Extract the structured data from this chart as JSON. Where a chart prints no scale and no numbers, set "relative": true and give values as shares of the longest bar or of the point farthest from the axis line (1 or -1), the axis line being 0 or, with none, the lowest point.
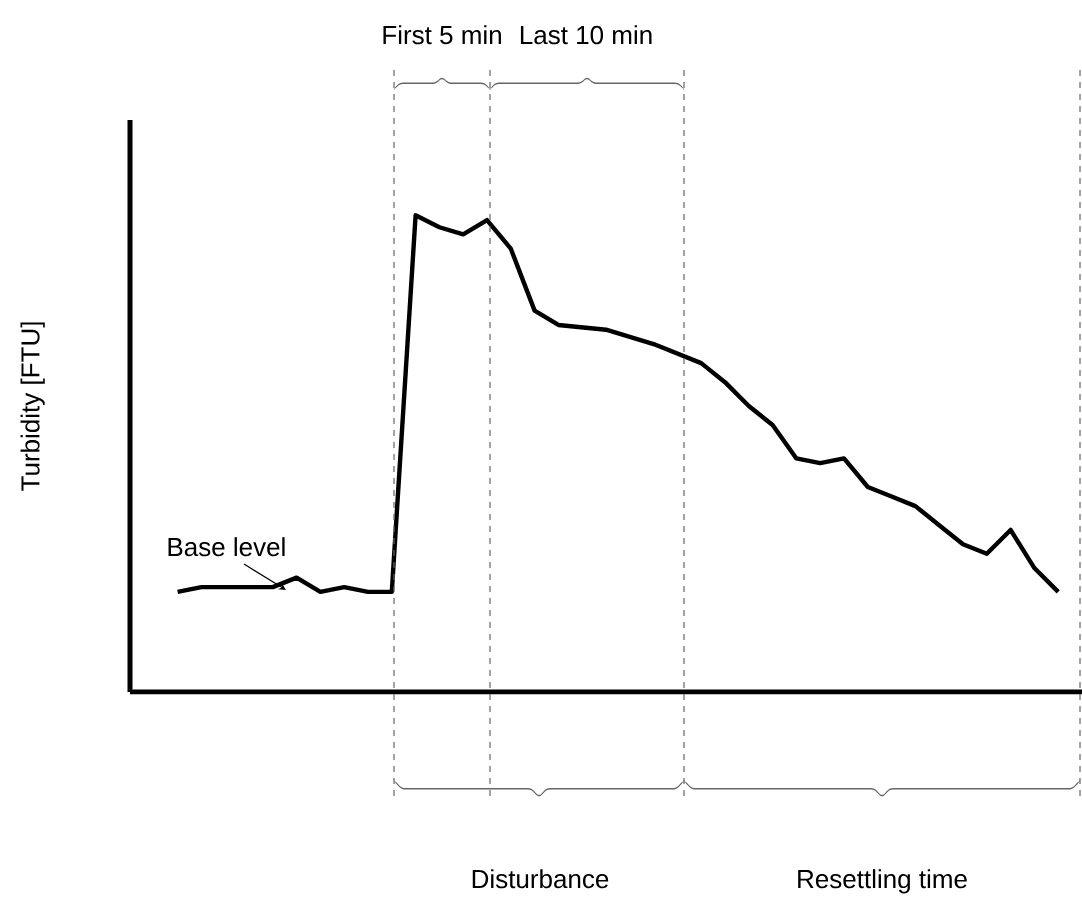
{
  "chart_data": {
    "type": "line",
    "relative": true,
    "ylabel": "Turbidity [FTU]",
    "categories": [
      null,
      null,
      null,
      null,
      null,
      null,
      null,
      null,
      null,
      null,
      null,
      null,
      null,
      null,
      null,
      null,
      null,
      null,
      null,
      null,
      null,
      null,
      null,
      null,
      null,
      null,
      null,
      null,
      null,
      null,
      null,
      null,
      null,
      null,
      null,
      null,
      null,
      null
    ],
    "series": [
      {
        "color": "#000000",
        "values": [
          0.21,
          0.22,
          0.22,
          0.22,
          0.22,
          0.24,
          0.21,
          0.22,
          0.21,
          0.21,
          1,
          0.975,
          0.96,
          0.99,
          0.93,
          0.8,
          0.77,
          0.765,
          0.76,
          0.745,
          0.73,
          0.71,
          0.69,
          0.65,
          0.6,
          0.56,
          0.49,
          0.48,
          0.49,
          0.43,
          0.41,
          0.39,
          0.35,
          0.31,
          0.29,
          0.34,
          0.26,
          0.21
        ]
      }
    ],
    "annotations": [
      "First 5 min",
      "Last 10 min",
      "Disturbance",
      "Resettling time",
      "Base level"
    ]
  }
}
